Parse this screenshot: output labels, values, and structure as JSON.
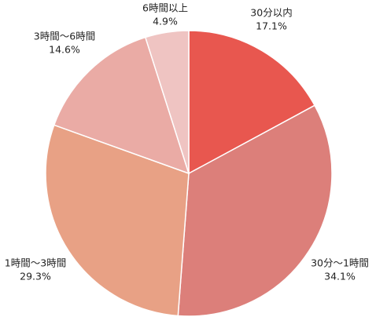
{
  "chart_data": {
    "type": "pie",
    "categories": [
      "30分以内",
      "30分〜1時間",
      "1時間〜3時間",
      "3時間〜6時間",
      "6時間以上"
    ],
    "values": [
      17.1,
      34.1,
      29.3,
      14.6,
      4.9
    ],
    "value_labels": [
      "17.1%",
      "34.1%",
      "29.3%",
      "14.6%",
      "4.9%"
    ],
    "colors": [
      "#e8574f",
      "#dc7f7a",
      "#e8a185",
      "#eaaba5",
      "#efc4c2"
    ]
  }
}
